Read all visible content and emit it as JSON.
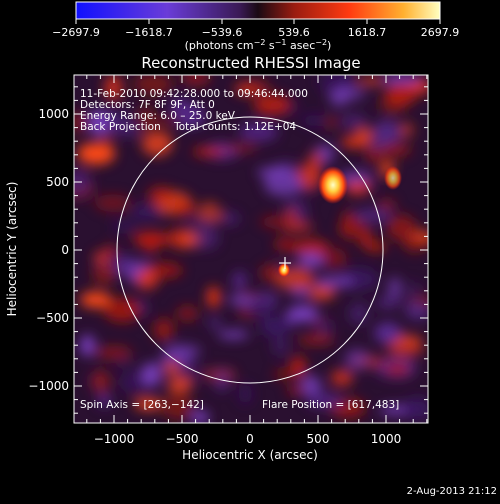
{
  "colorbar": {
    "tick_labels": [
      "−2697.9",
      "−1618.7",
      "−539.6",
      "539.6",
      "1618.7",
      "2697.9"
    ],
    "units_prefix": "(photons cm",
    "units_exp1": "−2",
    "units_mid": " s",
    "units_exp2": "−1",
    "units_mid2": " asec",
    "units_exp3": "−2",
    "units_suffix": ")"
  },
  "title": "Reconstructed RHESSI Image",
  "info_lines": [
    "11-Feb-2010 09:42:28.000 to 09:46:44.000",
    "Detectors: 7F 8F 9F, Att 0",
    "Energy Range: 6.0 – 25.0 keV",
    "Back Projection    Total counts: 1.12E+04"
  ],
  "spin_axis": "Spin Axis = [263,−142]",
  "flare_position": "Flare Position = [617,483]",
  "x_axis": {
    "label": "Heliocentric X (arcsec)",
    "ticks": [
      "−1000",
      "−500",
      "0",
      "500",
      "1000"
    ]
  },
  "y_axis": {
    "label": "Heliocentric Y (arcsec)",
    "ticks": [
      "1000",
      "500",
      "0",
      "−500",
      "−1000"
    ]
  },
  "date_stamp": "2-Aug-2013 21:12"
}
